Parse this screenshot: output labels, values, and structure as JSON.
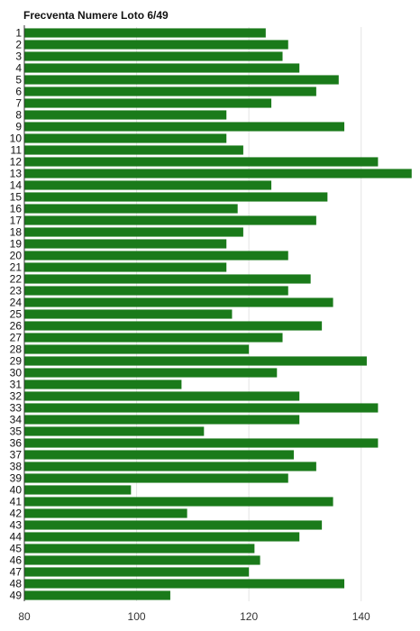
{
  "chart_data": {
    "type": "bar",
    "orientation": "horizontal",
    "title": "Frecventa Numere Loto 6/49",
    "xlabel": "",
    "ylabel": "",
    "xlim": [
      80,
      150
    ],
    "xticks": [
      80,
      100,
      120,
      140
    ],
    "grid": true,
    "legend": "none",
    "bar_color": "#1a7a1a",
    "categories": [
      "1",
      "2",
      "3",
      "4",
      "5",
      "6",
      "7",
      "8",
      "9",
      "10",
      "11",
      "12",
      "13",
      "14",
      "15",
      "16",
      "17",
      "18",
      "19",
      "20",
      "21",
      "22",
      "23",
      "24",
      "25",
      "26",
      "27",
      "28",
      "29",
      "30",
      "31",
      "32",
      "33",
      "34",
      "35",
      "36",
      "37",
      "38",
      "39",
      "40",
      "41",
      "42",
      "43",
      "44",
      "45",
      "46",
      "47",
      "48",
      "49"
    ],
    "values": [
      123,
      127,
      126,
      129,
      136,
      132,
      124,
      116,
      137,
      116,
      119,
      143,
      149,
      124,
      134,
      118,
      132,
      119,
      116,
      127,
      116,
      131,
      127,
      135,
      117,
      133,
      126,
      120,
      141,
      125,
      108,
      129,
      143,
      129,
      112,
      143,
      128,
      132,
      127,
      99,
      135,
      109,
      133,
      129,
      121,
      122,
      120,
      137,
      106
    ]
  }
}
